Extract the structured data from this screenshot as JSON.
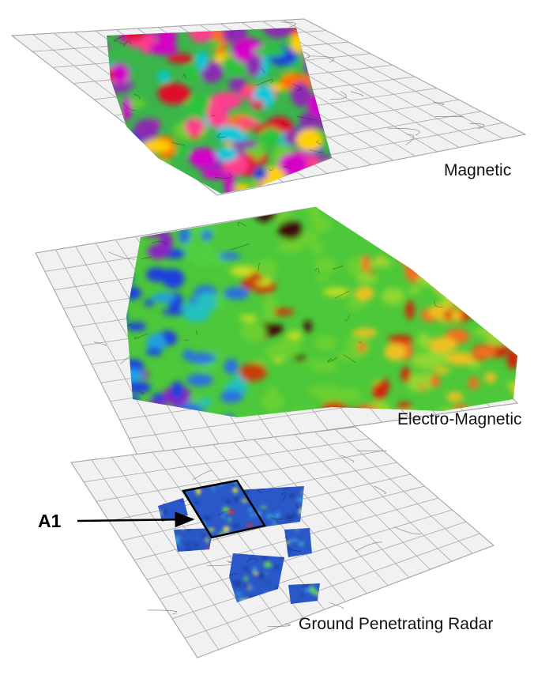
{
  "layers": [
    {
      "label": "Magnetic"
    },
    {
      "label": "Electro-Magnetic"
    },
    {
      "label": "Ground Penetrating Radar"
    }
  ],
  "annotation": {
    "label": "A1"
  }
}
